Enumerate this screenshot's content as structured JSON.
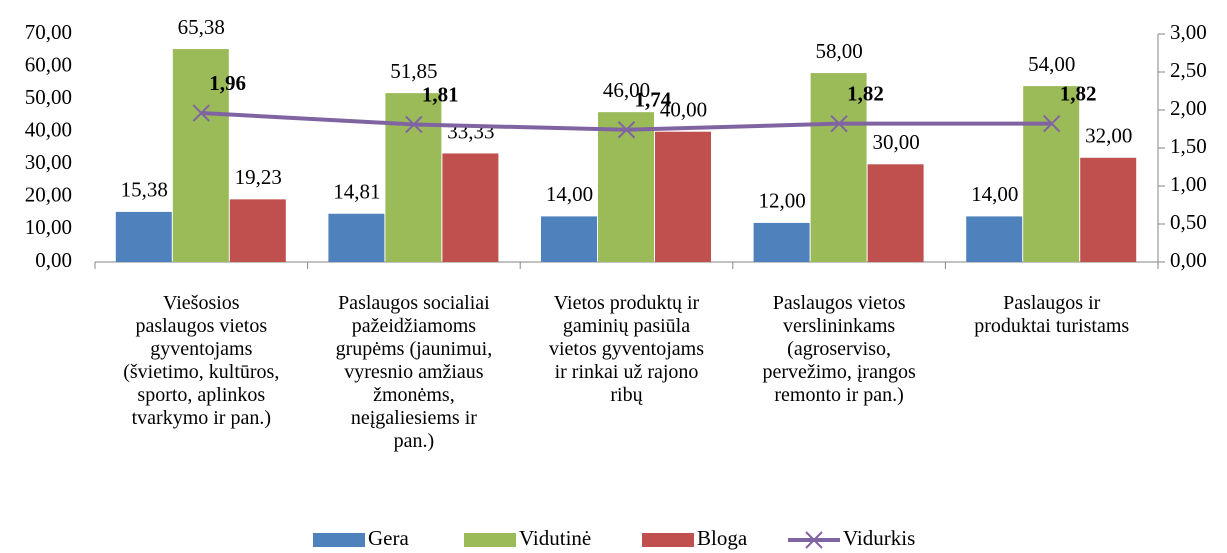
{
  "chart_data": {
    "type": "bar",
    "categories": [
      "Viešosios\npaslaugos vietos\ngyventojams\n(švietimo, kultūros,\nsporto, aplinkos\ntvarkymo ir pan.)",
      "Paslaugos socialiai\npažeidžiamoms\ngrupėms (jaunimui,\nvyresnio amžiaus\nžmonėms,\nneįgaliesiems ir\npan.)",
      "Vietos produktų ir\ngaminių pasiūla\nvietos gyventojams\nir rinkai už rajono\nribų",
      "Paslaugos vietos\nverslininkams\n(agroserviso,\npervežimo, įrangos\nremonto ir pan.)",
      "Paslaugos ir\nproduktai turistams"
    ],
    "series": [
      {
        "name": "Gera",
        "type": "bar",
        "color": "#4f81bd",
        "values": [
          15.38,
          14.81,
          14.0,
          12.0,
          14.0
        ],
        "value_labels": [
          "15,38",
          "14,81",
          "14,00",
          "12,00",
          "14,00"
        ]
      },
      {
        "name": "Vidutinė",
        "type": "bar",
        "color": "#9bbb59",
        "values": [
          65.38,
          51.85,
          46.0,
          58.0,
          54.0
        ],
        "value_labels": [
          "65,38",
          "51,85",
          "46,00",
          "58,00",
          "54,00"
        ]
      },
      {
        "name": "Bloga",
        "type": "bar",
        "color": "#c0504d",
        "values": [
          19.23,
          33.33,
          40.0,
          30.0,
          32.0
        ],
        "value_labels": [
          "19,23",
          "33,33",
          "40,00",
          "30,00",
          "32,00"
        ]
      },
      {
        "name": "Vidurkis",
        "type": "line",
        "axis": "y2",
        "color": "#8064a2",
        "values": [
          1.96,
          1.81,
          1.74,
          1.82,
          1.82
        ],
        "value_labels": [
          "1,96",
          "1,81",
          "1,74",
          "1,82",
          "1,82"
        ]
      }
    ],
    "ylim": [
      0,
      70
    ],
    "yticks": [
      {
        "value": 0,
        "label": "0,00"
      },
      {
        "value": 10,
        "label": "10,00"
      },
      {
        "value": 20,
        "label": "20,00"
      },
      {
        "value": 30,
        "label": "30,00"
      },
      {
        "value": 40,
        "label": "40,00"
      },
      {
        "value": 50,
        "label": "50,00"
      },
      {
        "value": 60,
        "label": "60,00"
      },
      {
        "value": 70,
        "label": "70,00"
      }
    ],
    "y2lim": [
      0,
      3
    ],
    "y2ticks": [
      {
        "value": 0,
        "label": "0,00"
      },
      {
        "value": 0.5,
        "label": "0,50"
      },
      {
        "value": 1,
        "label": "1,00"
      },
      {
        "value": 1.5,
        "label": "1,50"
      },
      {
        "value": 2,
        "label": "2,00"
      },
      {
        "value": 2.5,
        "label": "2,50"
      },
      {
        "value": 3,
        "label": "3,00"
      }
    ],
    "legend": "bottom"
  }
}
